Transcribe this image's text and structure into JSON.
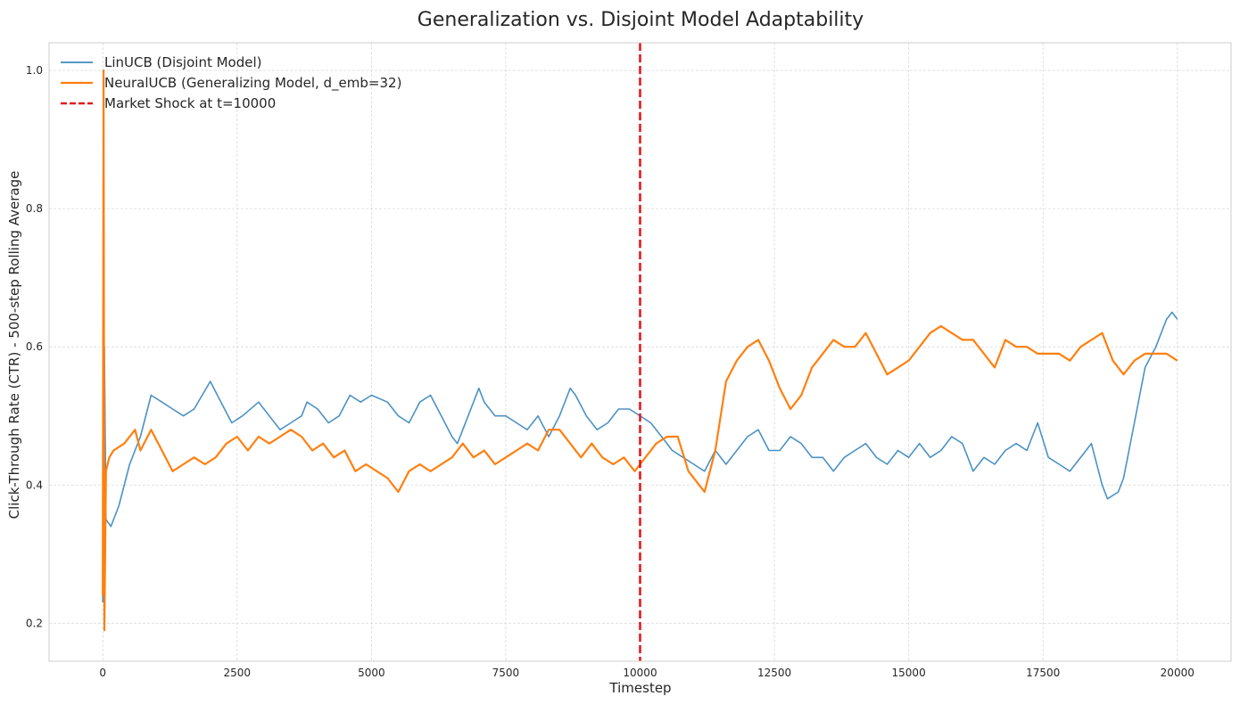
{
  "chart_data": {
    "type": "line",
    "title": "Generalization vs. Disjoint Model Adaptability",
    "xlabel": "Timestep",
    "ylabel": "Click-Through Rate (CTR) - 500-step Rolling Average",
    "xlim": [
      -1000,
      21000
    ],
    "ylim": [
      0.145,
      1.04
    ],
    "x_ticks": [
      0,
      2500,
      5000,
      7500,
      10000,
      12500,
      15000,
      17500,
      20000
    ],
    "x_tick_labels": [
      "0",
      "2500",
      "5000",
      "7500",
      "10000",
      "12500",
      "15000",
      "17500",
      "20000"
    ],
    "y_ticks": [
      0.2,
      0.4,
      0.6,
      0.8,
      1.0
    ],
    "y_tick_labels": [
      "0.2",
      "0.4",
      "0.6",
      "0.8",
      "1.0"
    ],
    "grid": true,
    "legend_position": "top-left",
    "series": [
      {
        "name": "LinUCB (Disjoint Model)",
        "color": "#1f77b4",
        "style": "solid",
        "points": [
          [
            0,
            0.23
          ],
          [
            30,
            0.6
          ],
          [
            60,
            0.35
          ],
          [
            150,
            0.34
          ],
          [
            300,
            0.37
          ],
          [
            500,
            0.43
          ],
          [
            700,
            0.47
          ],
          [
            900,
            0.53
          ],
          [
            1100,
            0.52
          ],
          [
            1300,
            0.51
          ],
          [
            1500,
            0.5
          ],
          [
            1700,
            0.51
          ],
          [
            2000,
            0.55
          ],
          [
            2200,
            0.52
          ],
          [
            2400,
            0.49
          ],
          [
            2600,
            0.5
          ],
          [
            2900,
            0.52
          ],
          [
            3100,
            0.5
          ],
          [
            3300,
            0.48
          ],
          [
            3500,
            0.49
          ],
          [
            3700,
            0.5
          ],
          [
            3800,
            0.52
          ],
          [
            4000,
            0.51
          ],
          [
            4200,
            0.49
          ],
          [
            4400,
            0.5
          ],
          [
            4600,
            0.53
          ],
          [
            4800,
            0.52
          ],
          [
            5000,
            0.53
          ],
          [
            5300,
            0.52
          ],
          [
            5500,
            0.5
          ],
          [
            5700,
            0.49
          ],
          [
            5900,
            0.52
          ],
          [
            6100,
            0.53
          ],
          [
            6300,
            0.5
          ],
          [
            6500,
            0.47
          ],
          [
            6600,
            0.46
          ],
          [
            6800,
            0.5
          ],
          [
            7000,
            0.54
          ],
          [
            7100,
            0.52
          ],
          [
            7300,
            0.5
          ],
          [
            7500,
            0.5
          ],
          [
            7700,
            0.49
          ],
          [
            7900,
            0.48
          ],
          [
            8100,
            0.5
          ],
          [
            8300,
            0.47
          ],
          [
            8500,
            0.5
          ],
          [
            8700,
            0.54
          ],
          [
            8800,
            0.53
          ],
          [
            9000,
            0.5
          ],
          [
            9200,
            0.48
          ],
          [
            9400,
            0.49
          ],
          [
            9600,
            0.51
          ],
          [
            9800,
            0.51
          ],
          [
            10000,
            0.5
          ],
          [
            10200,
            0.49
          ],
          [
            10400,
            0.47
          ],
          [
            10600,
            0.45
          ],
          [
            10800,
            0.44
          ],
          [
            11000,
            0.43
          ],
          [
            11200,
            0.42
          ],
          [
            11400,
            0.45
          ],
          [
            11600,
            0.43
          ],
          [
            11800,
            0.45
          ],
          [
            12000,
            0.47
          ],
          [
            12200,
            0.48
          ],
          [
            12400,
            0.45
          ],
          [
            12600,
            0.45
          ],
          [
            12800,
            0.47
          ],
          [
            13000,
            0.46
          ],
          [
            13200,
            0.44
          ],
          [
            13400,
            0.44
          ],
          [
            13600,
            0.42
          ],
          [
            13800,
            0.44
          ],
          [
            14000,
            0.45
          ],
          [
            14200,
            0.46
          ],
          [
            14400,
            0.44
          ],
          [
            14600,
            0.43
          ],
          [
            14800,
            0.45
          ],
          [
            15000,
            0.44
          ],
          [
            15200,
            0.46
          ],
          [
            15400,
            0.44
          ],
          [
            15600,
            0.45
          ],
          [
            15800,
            0.47
          ],
          [
            16000,
            0.46
          ],
          [
            16200,
            0.42
          ],
          [
            16400,
            0.44
          ],
          [
            16600,
            0.43
          ],
          [
            16800,
            0.45
          ],
          [
            17000,
            0.46
          ],
          [
            17200,
            0.45
          ],
          [
            17400,
            0.49
          ],
          [
            17600,
            0.44
          ],
          [
            17800,
            0.43
          ],
          [
            18000,
            0.42
          ],
          [
            18200,
            0.44
          ],
          [
            18400,
            0.46
          ],
          [
            18600,
            0.4
          ],
          [
            18700,
            0.38
          ],
          [
            18900,
            0.39
          ],
          [
            19000,
            0.41
          ],
          [
            19200,
            0.49
          ],
          [
            19400,
            0.57
          ],
          [
            19600,
            0.6
          ],
          [
            19800,
            0.64
          ],
          [
            19900,
            0.65
          ],
          [
            20000,
            0.64
          ]
        ]
      },
      {
        "name": "NeuralUCB (Generalizing Model, d_emb=32)",
        "color": "#ff7f0e",
        "style": "solid",
        "points": [
          [
            0,
            0.24
          ],
          [
            15,
            1.0
          ],
          [
            30,
            0.19
          ],
          [
            60,
            0.42
          ],
          [
            120,
            0.44
          ],
          [
            200,
            0.45
          ],
          [
            400,
            0.46
          ],
          [
            600,
            0.48
          ],
          [
            700,
            0.45
          ],
          [
            900,
            0.48
          ],
          [
            1100,
            0.45
          ],
          [
            1300,
            0.42
          ],
          [
            1500,
            0.43
          ],
          [
            1700,
            0.44
          ],
          [
            1900,
            0.43
          ],
          [
            2100,
            0.44
          ],
          [
            2300,
            0.46
          ],
          [
            2500,
            0.47
          ],
          [
            2700,
            0.45
          ],
          [
            2900,
            0.47
          ],
          [
            3100,
            0.46
          ],
          [
            3300,
            0.47
          ],
          [
            3500,
            0.48
          ],
          [
            3700,
            0.47
          ],
          [
            3900,
            0.45
          ],
          [
            4100,
            0.46
          ],
          [
            4300,
            0.44
          ],
          [
            4500,
            0.45
          ],
          [
            4700,
            0.42
          ],
          [
            4900,
            0.43
          ],
          [
            5100,
            0.42
          ],
          [
            5300,
            0.41
          ],
          [
            5500,
            0.39
          ],
          [
            5700,
            0.42
          ],
          [
            5900,
            0.43
          ],
          [
            6100,
            0.42
          ],
          [
            6300,
            0.43
          ],
          [
            6500,
            0.44
          ],
          [
            6700,
            0.46
          ],
          [
            6900,
            0.44
          ],
          [
            7100,
            0.45
          ],
          [
            7300,
            0.43
          ],
          [
            7500,
            0.44
          ],
          [
            7700,
            0.45
          ],
          [
            7900,
            0.46
          ],
          [
            8100,
            0.45
          ],
          [
            8300,
            0.48
          ],
          [
            8500,
            0.48
          ],
          [
            8700,
            0.46
          ],
          [
            8900,
            0.44
          ],
          [
            9100,
            0.46
          ],
          [
            9300,
            0.44
          ],
          [
            9500,
            0.43
          ],
          [
            9700,
            0.44
          ],
          [
            9900,
            0.42
          ],
          [
            10100,
            0.44
          ],
          [
            10300,
            0.46
          ],
          [
            10500,
            0.47
          ],
          [
            10700,
            0.47
          ],
          [
            10900,
            0.42
          ],
          [
            11100,
            0.4
          ],
          [
            11200,
            0.39
          ],
          [
            11400,
            0.45
          ],
          [
            11600,
            0.55
          ],
          [
            11800,
            0.58
          ],
          [
            12000,
            0.6
          ],
          [
            12200,
            0.61
          ],
          [
            12400,
            0.58
          ],
          [
            12600,
            0.54
          ],
          [
            12800,
            0.51
          ],
          [
            13000,
            0.53
          ],
          [
            13200,
            0.57
          ],
          [
            13400,
            0.59
          ],
          [
            13600,
            0.61
          ],
          [
            13800,
            0.6
          ],
          [
            14000,
            0.6
          ],
          [
            14200,
            0.62
          ],
          [
            14400,
            0.59
          ],
          [
            14600,
            0.56
          ],
          [
            14800,
            0.57
          ],
          [
            15000,
            0.58
          ],
          [
            15200,
            0.6
          ],
          [
            15400,
            0.62
          ],
          [
            15600,
            0.63
          ],
          [
            15800,
            0.62
          ],
          [
            16000,
            0.61
          ],
          [
            16200,
            0.61
          ],
          [
            16400,
            0.59
          ],
          [
            16600,
            0.57
          ],
          [
            16800,
            0.61
          ],
          [
            17000,
            0.6
          ],
          [
            17200,
            0.6
          ],
          [
            17400,
            0.59
          ],
          [
            17600,
            0.59
          ],
          [
            17800,
            0.59
          ],
          [
            18000,
            0.58
          ],
          [
            18200,
            0.6
          ],
          [
            18400,
            0.61
          ],
          [
            18600,
            0.62
          ],
          [
            18800,
            0.58
          ],
          [
            19000,
            0.56
          ],
          [
            19200,
            0.58
          ],
          [
            19400,
            0.59
          ],
          [
            19600,
            0.59
          ],
          [
            19800,
            0.59
          ],
          [
            20000,
            0.58
          ]
        ]
      }
    ],
    "annotations": [
      {
        "name": "Market Shock at t=10000",
        "type": "vline",
        "x": 10000,
        "color": "#e31a1c",
        "style": "dashed"
      }
    ]
  }
}
